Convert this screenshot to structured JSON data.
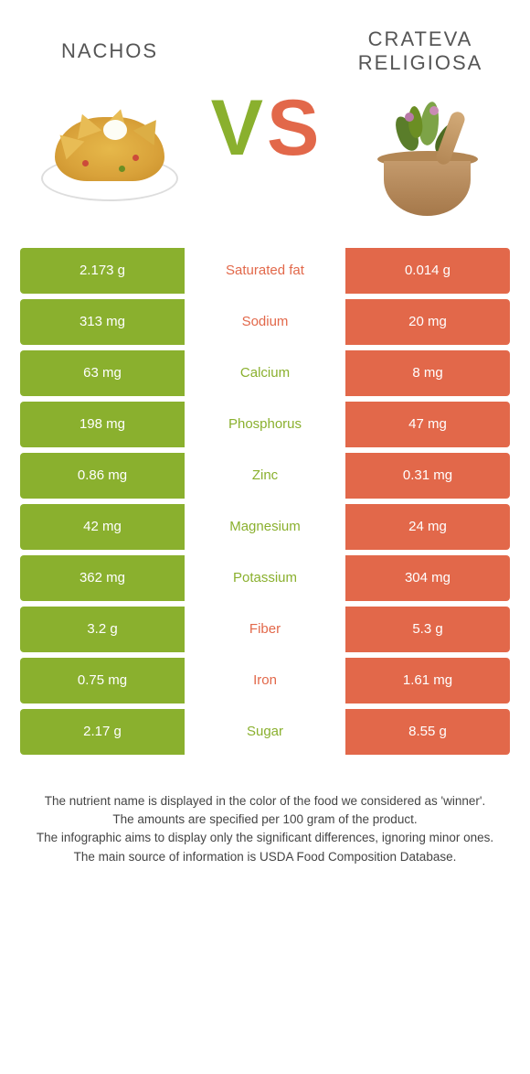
{
  "colors": {
    "green": "#8ab02e",
    "orange": "#e2684a",
    "label_green": "#8ab02e",
    "label_orange": "#e2684a",
    "text_body": "#444444",
    "title_grey": "#666666"
  },
  "header": {
    "food1_title": "Nachos",
    "food2_title": "Crateva religiosa",
    "vs_v": "V",
    "vs_s": "S"
  },
  "rows": [
    {
      "left": "2.173 g",
      "label": "Saturated fat",
      "right": "0.014 g",
      "label_color": "orange"
    },
    {
      "left": "313 mg",
      "label": "Sodium",
      "right": "20 mg",
      "label_color": "orange"
    },
    {
      "left": "63 mg",
      "label": "Calcium",
      "right": "8 mg",
      "label_color": "green"
    },
    {
      "left": "198 mg",
      "label": "Phosphorus",
      "right": "47 mg",
      "label_color": "green"
    },
    {
      "left": "0.86 mg",
      "label": "Zinc",
      "right": "0.31 mg",
      "label_color": "green"
    },
    {
      "left": "42 mg",
      "label": "Magnesium",
      "right": "24 mg",
      "label_color": "green"
    },
    {
      "left": "362 mg",
      "label": "Potassium",
      "right": "304 mg",
      "label_color": "green"
    },
    {
      "left": "3.2 g",
      "label": "Fiber",
      "right": "5.3 g",
      "label_color": "orange"
    },
    {
      "left": "0.75 mg",
      "label": "Iron",
      "right": "1.61 mg",
      "label_color": "orange"
    },
    {
      "left": "2.17 g",
      "label": "Sugar",
      "right": "8.55 g",
      "label_color": "green"
    }
  ],
  "footer": {
    "line1": "The nutrient name is displayed in the color of the food we considered as 'winner'.",
    "line2": "The amounts are specified per 100 gram of the product.",
    "line3": "The infographic aims to display only the significant differences, ignoring minor ones.",
    "line4": "The main source of information is USDA Food Composition Database."
  }
}
